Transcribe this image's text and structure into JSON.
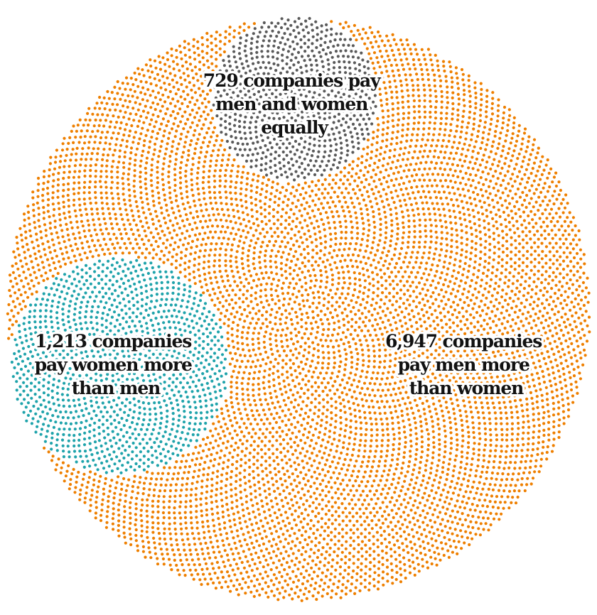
{
  "chart_data": {
    "type": "dot-cluster",
    "unit": "companies",
    "series": [
      {
        "key": "men_more",
        "label_lines": [
          "6,947 companies",
          "pay men more",
          "than women"
        ],
        "value": 6947,
        "color": "#ee7f00"
      },
      {
        "key": "women_more",
        "label_lines": [
          "1,213 companies",
          "pay women more",
          "than men"
        ],
        "value": 1213,
        "color": "#1fa3ab"
      },
      {
        "key": "equal",
        "label_lines": [
          "729 companies pay",
          "men and women",
          "equally"
        ],
        "value": 729,
        "color": "#5a5a5a"
      }
    ]
  }
}
